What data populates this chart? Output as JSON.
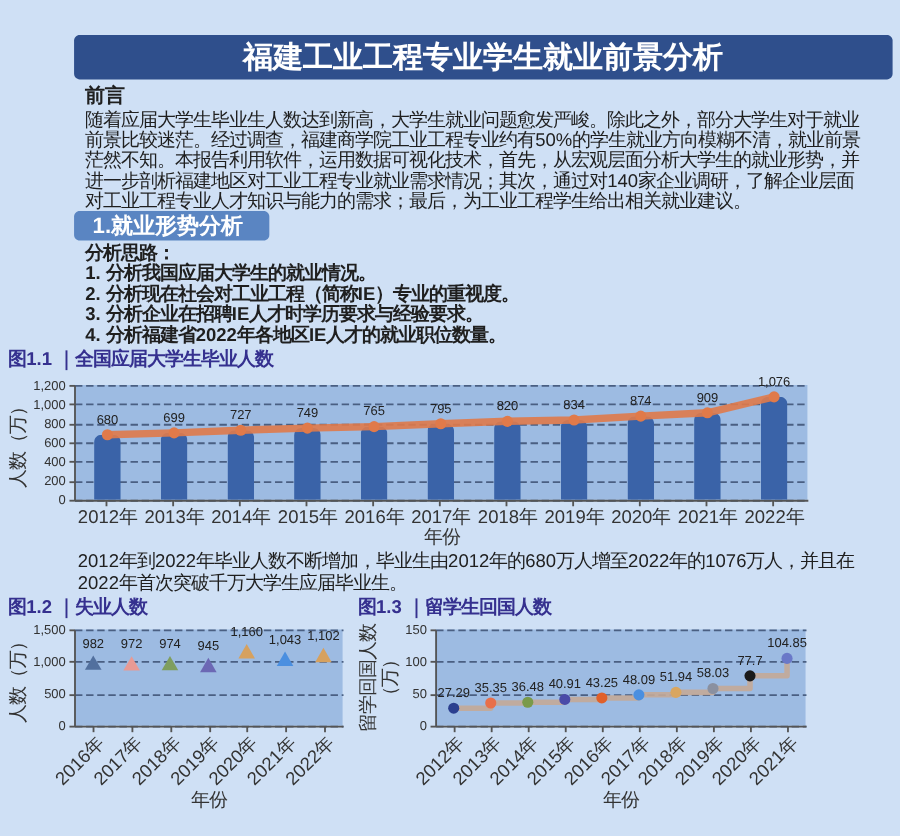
{
  "chart_data": [
    {
      "type": "other",
      "title": "福建工业工程专业学生就业前景分析",
      "annotations": [
        "前言",
        "随着应届大学生毕业生人数达到新高，大学生就业问题愈发严峻。除此之外，部分大学生对于就业前景比较迷茫。经过调查，福建商学院工业工程专业约有50%的学生就业方向模糊不清，就业前景茫然不知。本报告利用软件，运用数据可视化技术，首先，从宏观层面分析大学生的就业形势，并进一步剖析福建地区对工业工程专业就业需求情况；其次，通过对140家企业调研，了解企业层面对工业工程专业人才知识与能力的需求；最后，为工业工程学生给出相关就业建议。",
        "1.就业形势分析",
        "分析思路：",
        "1. 分析我国应届大学生的就业情况。",
        "2. 分析现在社会对工业工程（简称IE）专业的重视度。",
        "3. 分析企业在招聘IE人才时学历要求与经验要求。",
        "4. 分析福建省2022年各地区IE人才的就业职位数量。"
      ]
    },
    {
      "type": "bar",
      "title": "图1.1 ｜全国应届大学生毕业人数",
      "xlabel": "年份",
      "ylabel": "人数（万）",
      "categories": [
        "2012年",
        "2013年",
        "2014年",
        "2015年",
        "2016年",
        "2017年",
        "2018年",
        "2019年",
        "2020年",
        "2021年",
        "2022年"
      ],
      "series": [
        {
          "type": "bar",
          "color": "#3a63a8",
          "values": [
            680,
            699,
            727,
            749,
            765,
            795,
            820,
            834,
            874,
            909,
            1076
          ]
        },
        {
          "type": "line",
          "color": "#e07a4a",
          "values": [
            680,
            699,
            727,
            749,
            765,
            795,
            820,
            834,
            874,
            909,
            1076
          ],
          "value_labels": [
            "680",
            "699",
            "727",
            "749",
            "765",
            "795",
            "820",
            "834",
            "874",
            "909",
            "1,076"
          ]
        }
      ],
      "marker": "circle",
      "ylim": [
        0,
        1200
      ],
      "yticks": [
        0,
        200,
        400,
        600,
        800,
        {
          "value": 1000,
          "label": "1,000"
        },
        {
          "value": 1200,
          "label": "1,200"
        }
      ],
      "grid": "y",
      "annotations": [
        "2012年到2022年毕业人数不断增加，毕业生由2012年的680万人增至2022年的1076万人，并且在2022年首次突破千万大学生应届毕业生。"
      ]
    },
    {
      "type": "scatter",
      "title": "图1.2 ｜失业人数",
      "xlabel": "年份",
      "ylabel": "人数（万）",
      "categories": [
        "2016年",
        "2017年",
        "2018年",
        "2019年",
        "2020年",
        "2021年",
        "2022年"
      ],
      "values": [
        982,
        972,
        974,
        945,
        1160,
        1043,
        1102
      ],
      "colors": [
        "#52709e",
        "#e89a94",
        "#7f9e5e",
        "#6c68b4",
        "#d6a15f",
        "#4b8fe0",
        "#d6a15f"
      ],
      "value_labels": [
        "982",
        "972",
        "974",
        "945",
        "1,160",
        "1,043",
        "1,102"
      ],
      "marker": "triangle",
      "ylim": [
        0,
        1500
      ],
      "yticks": [
        0,
        500,
        {
          "value": 1000,
          "label": "1,000"
        },
        {
          "value": 1500,
          "label": "1,500"
        }
      ],
      "grid": "y"
    },
    {
      "type": "step",
      "title": "图1.3 ｜留学生回国人数",
      "xlabel": "年份",
      "ylabel": "留学回国人数（万）",
      "categories": [
        "2012年",
        "2013年",
        "2014年",
        "2015年",
        "2016年",
        "2017年",
        "2018年",
        "2019年",
        "2020年",
        "2021年"
      ],
      "values": [
        27.29,
        35.35,
        36.48,
        40.91,
        43.25,
        48.09,
        51.94,
        58.03,
        77.7,
        104.85
      ],
      "color": "#c4aa98",
      "colors": [
        "#2b3f8f",
        "#e8704a",
        "#7a9a4a",
        "#4a4aa8",
        "#e0602a",
        "#4a8fe0",
        "#d9a660",
        "#8a90a0",
        "#1a1a1a",
        "#6a78c8"
      ],
      "marker": "circle",
      "data_labels": true,
      "ylim": [
        0,
        150
      ],
      "yticks": [
        0,
        50,
        100,
        150
      ],
      "grid": "y"
    }
  ]
}
